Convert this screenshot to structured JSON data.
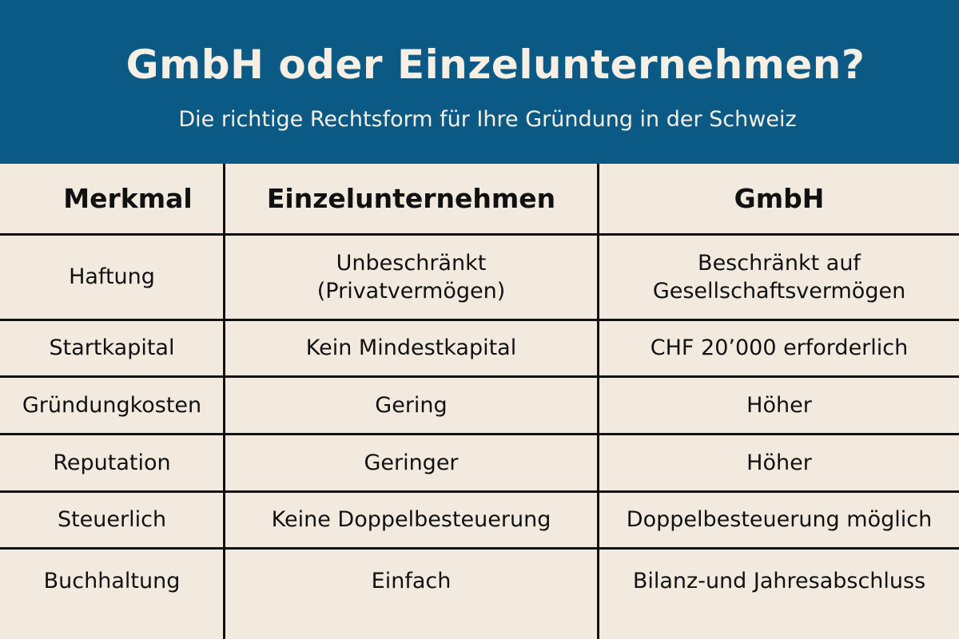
{
  "header": {
    "title": "GmbH oder Einzelunternehmen?",
    "subtitle": "Die richtige Rechtsform für Ihre Gründung in der Schweiz"
  },
  "colors": {
    "banner": "#0b5a86",
    "background": "#f2eadf",
    "lines": "#111111"
  },
  "table": {
    "columns": [
      "Merkmal",
      "Einzelunternehmen",
      "GmbH"
    ],
    "rows": [
      {
        "merkmal": "Haftung",
        "einzel": "Unbeschränkt\n(Privatvermögen)",
        "gmbh": "Beschränkt auf\nGesellschaftsvermögen"
      },
      {
        "merkmal": "Startkapital",
        "einzel": "Kein Mindestkapital",
        "gmbh": "CHF 20’000 erforderlich"
      },
      {
        "merkmal": "Gründungkosten",
        "einzel": "Gering",
        "gmbh": "Höher"
      },
      {
        "merkmal": "Reputation",
        "einzel": "Geringer",
        "gmbh": "Höher"
      },
      {
        "merkmal": "Steuerlich",
        "einzel": "Keine Doppelbesteuerung",
        "gmbh": "Doppelbesteuerung möglich"
      },
      {
        "merkmal": "Buchhaltung",
        "einzel": "Einfach",
        "gmbh": "Bilanz-und Jahresabschluss"
      }
    ]
  }
}
